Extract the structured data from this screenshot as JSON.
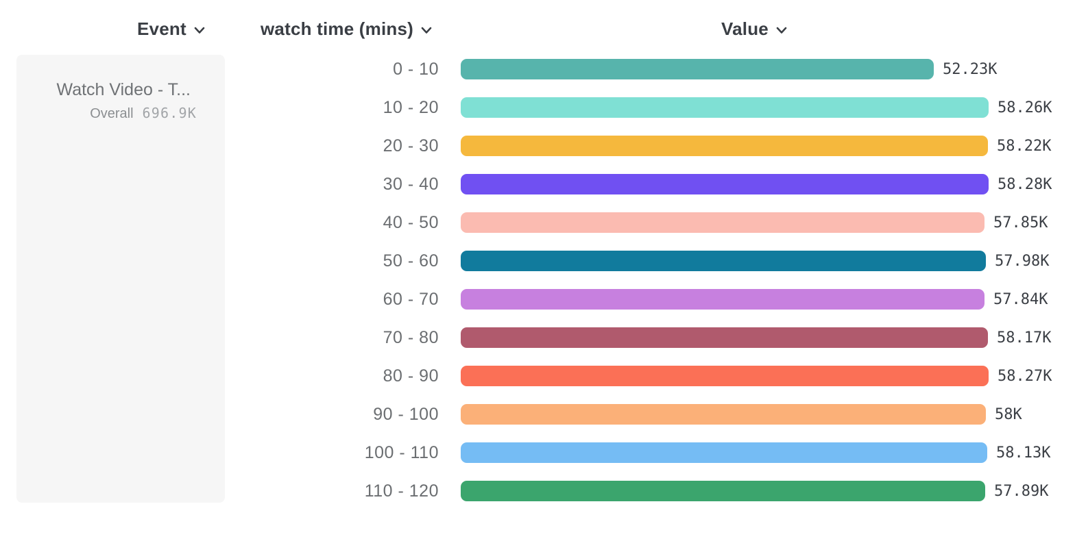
{
  "header": {
    "columns": [
      {
        "id": "event",
        "label": "Event"
      },
      {
        "id": "series",
        "label": "watch time (mins)"
      },
      {
        "id": "value",
        "label": "Value"
      }
    ]
  },
  "legend": {
    "event_name": "Watch Video - T...",
    "overall_label": "Overall",
    "overall_value": "696.9K"
  },
  "chart_data": {
    "type": "bar",
    "orientation": "horizontal",
    "title": "",
    "xlabel": "Value",
    "ylabel": "watch time (mins)",
    "xlim": [
      0,
      58280
    ],
    "grid": false,
    "categories": [
      "0 - 10",
      "10 - 20",
      "20 - 30",
      "30 - 40",
      "40 - 50",
      "50 - 60",
      "60 - 70",
      "70 - 80",
      "80 - 90",
      "90 - 100",
      "100 - 110",
      "110 - 120"
    ],
    "values": [
      52230,
      58260,
      58220,
      58280,
      57850,
      57980,
      57840,
      58170,
      58270,
      58000,
      58130,
      57890
    ],
    "value_labels": [
      "52.23K",
      "58.26K",
      "58.22K",
      "58.28K",
      "57.85K",
      "57.98K",
      "57.84K",
      "58.17K",
      "58.27K",
      "58K",
      "58.13K",
      "57.89K"
    ],
    "colors": [
      "#57b4ac",
      "#7fe0d4",
      "#f5b83d",
      "#7050f2",
      "#fbbbb1",
      "#117b9d",
      "#c780df",
      "#b05a6d",
      "#fb7056",
      "#fbb078",
      "#75bcf4",
      "#3ba56d"
    ]
  },
  "layout_colors": {
    "panel_bg": "#f6f6f6",
    "header_text": "#3a3e44",
    "category_text": "#6b6e71",
    "value_text": "#3b3f45"
  }
}
